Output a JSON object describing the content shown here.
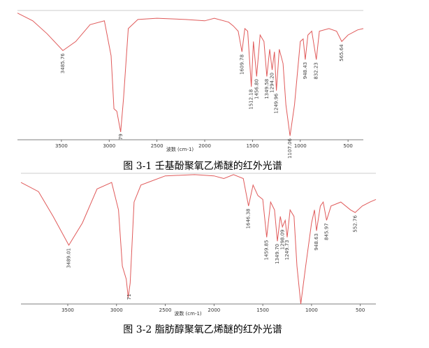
{
  "chart_data": [
    {
      "type": "line",
      "title": "图 3-1  壬基酚聚氧乙烯醚的红外光谱",
      "xlabel": "波数 (cm-1)",
      "color": "#e05a5a",
      "xlim": [
        3960,
        340
      ],
      "ylim": [
        0,
        100
      ],
      "xticks": [
        3500,
        3000,
        2500,
        2000,
        1500,
        1000,
        500
      ],
      "x": [
        3960,
        3800,
        3650,
        3485,
        3350,
        3200,
        3050,
        2980,
        2950,
        2920,
        2880,
        2850,
        2800,
        2700,
        2500,
        2200,
        2000,
        1900,
        1750,
        1700,
        1650,
        1610,
        1580,
        1550,
        1512,
        1490,
        1457,
        1420,
        1380,
        1350,
        1320,
        1294,
        1270,
        1250,
        1220,
        1180,
        1150,
        1107,
        1060,
        1000,
        970,
        948,
        920,
        880,
        832,
        800,
        700,
        620,
        566,
        500,
        400,
        340
      ],
      "values": [
        98,
        92,
        82,
        69,
        76,
        89,
        92,
        65,
        24,
        22,
        6,
        32,
        86,
        93,
        94,
        93,
        92,
        94,
        91,
        88,
        84,
        68,
        86,
        84,
        41,
        76,
        49,
        81,
        76,
        49,
        70,
        54,
        68,
        38,
        70,
        59,
        27,
        3,
        27,
        76,
        78,
        62,
        81,
        84,
        62,
        84,
        86,
        84,
        76,
        81,
        85,
        86
      ],
      "annotations": [
        {
          "label": "3485.76",
          "x": 3485.76
        },
        {
          "label": "79",
          "x": 2879
        },
        {
          "label": "1609.78",
          "x": 1609.78
        },
        {
          "label": "1512.18",
          "x": 1512.18
        },
        {
          "label": "1456.80",
          "x": 1456.8
        },
        {
          "label": "1349.58",
          "x": 1349.58
        },
        {
          "label": "1294.20",
          "x": 1294.2
        },
        {
          "label": "1249.96",
          "x": 1249.96
        },
        {
          "label": "1107.06",
          "x": 1107.06
        },
        {
          "label": "948.43",
          "x": 948.43
        },
        {
          "label": "832.23",
          "x": 832.23
        },
        {
          "label": "565.64",
          "x": 565.64
        }
      ]
    },
    {
      "type": "line",
      "title": "图 3-2  脂肪醇聚氧乙烯醚的红外光谱",
      "xlabel": "波数 (cm-1)",
      "color": "#e05a5a",
      "xlim": [
        3980,
        340
      ],
      "ylim": [
        0,
        100
      ],
      "xticks": [
        3500,
        3000,
        2500,
        2000,
        1500,
        1000,
        500
      ],
      "x": [
        3980,
        3800,
        3650,
        3489,
        3350,
        3200,
        3050,
        2980,
        2940,
        2900,
        2880,
        2860,
        2820,
        2750,
        2500,
        2200,
        2000,
        1900,
        1800,
        1700,
        1646,
        1600,
        1550,
        1500,
        1460,
        1420,
        1380,
        1350,
        1320,
        1299,
        1270,
        1250,
        1220,
        1180,
        1150,
        1110,
        1060,
        1000,
        970,
        949,
        910,
        880,
        846,
        800,
        700,
        600,
        553,
        480,
        400,
        340
      ],
      "values": [
        93,
        86,
        67,
        45,
        62,
        88,
        93,
        72,
        29,
        19,
        5,
        16,
        78,
        91,
        98,
        99,
        98,
        96,
        99,
        96,
        75,
        91,
        83,
        80,
        51,
        78,
        72,
        48,
        67,
        59,
        64,
        51,
        72,
        67,
        29,
        0,
        29,
        62,
        72,
        56,
        75,
        78,
        64,
        75,
        78,
        72,
        70,
        75,
        78,
        80
      ],
      "annotations": [
        {
          "label": "3489.01",
          "x": 3489.01
        },
        {
          "label": "71",
          "x": 2871
        },
        {
          "label": "1646.38",
          "x": 1646.38
        },
        {
          "label": "1459.85",
          "x": 1459.85
        },
        {
          "label": "1349.70",
          "x": 1349.7
        },
        {
          "label": "1298.09",
          "x": 1298.09
        },
        {
          "label": "1249.73",
          "x": 1249.73
        },
        {
          "label": "948.63",
          "x": 948.63
        },
        {
          "label": "845.97",
          "x": 845.97
        },
        {
          "label": "552.76",
          "x": 552.76
        }
      ]
    }
  ]
}
